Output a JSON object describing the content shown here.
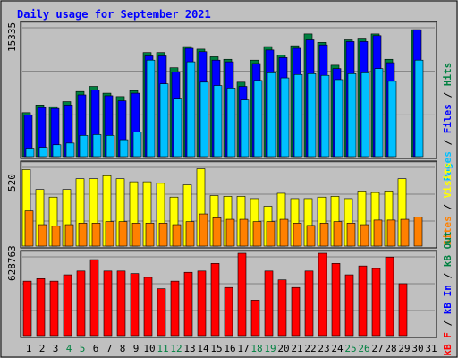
{
  "title": "Daily usage for September 2021",
  "colors": {
    "background": "#c0c0c0",
    "title": "#0000ff",
    "hits": "#008040",
    "files": "#0000ff",
    "pages": "#00c0ff",
    "visits": "#ffff00",
    "sites": "#ff8000",
    "kbin": "#0000ff",
    "kbout": "#008040",
    "kbf": "#ff0000"
  },
  "chart_data": [
    {
      "type": "bar",
      "panel": "hits-files-pages",
      "y_max_label": "15335",
      "ylim": [
        0,
        15335
      ],
      "right_label": [
        {
          "text": "Pages",
          "color": "#00c0ff"
        },
        {
          "text": " / ",
          "color": "#000000"
        },
        {
          "text": "Files",
          "color": "#0000ff"
        },
        {
          "text": " / ",
          "color": "#000000"
        },
        {
          "text": "Hits",
          "color": "#008040"
        }
      ],
      "categories": [
        "1",
        "2",
        "3",
        "4",
        "5",
        "6",
        "7",
        "8",
        "9",
        "10",
        "11",
        "12",
        "13",
        "14",
        "15",
        "16",
        "17",
        "18",
        "19",
        "20",
        "21",
        "22",
        "23",
        "24",
        "25",
        "26",
        "27",
        "28",
        "29",
        "30",
        "31"
      ],
      "series": [
        {
          "name": "Hits",
          "values": [
            5200,
            6100,
            5900,
            6500,
            7700,
            8300,
            7500,
            7100,
            7800,
            12300,
            12300,
            10500,
            13000,
            12700,
            11800,
            11500,
            8800,
            11400,
            13000,
            12000,
            13100,
            14500,
            13500,
            10800,
            13800,
            13900,
            14500,
            11500,
            null,
            null,
            null
          ]
        },
        {
          "name": "Files",
          "values": [
            4900,
            5800,
            5700,
            6100,
            7300,
            7900,
            7200,
            6600,
            7500,
            11900,
            11900,
            10000,
            12800,
            12400,
            11400,
            11200,
            8300,
            11000,
            12600,
            11700,
            12800,
            13800,
            13200,
            10400,
            13600,
            13600,
            14300,
            11100,
            null,
            null,
            null
          ]
        },
        {
          "name": "Pages",
          "values": [
            1000,
            1100,
            1400,
            1600,
            2500,
            2600,
            2500,
            2000,
            2900,
            11400,
            8600,
            6800,
            11200,
            8800,
            8400,
            8100,
            6700,
            9000,
            9900,
            9300,
            9700,
            9800,
            9600,
            9100,
            9800,
            9900,
            10400,
            8900,
            null,
            null,
            null
          ]
        }
      ],
      "day_values_30": [
        15000,
        11400
      ]
    },
    {
      "type": "bar",
      "panel": "visits-sites",
      "y_max_label": "520",
      "ylim": [
        0,
        520
      ],
      "right_label": [
        {
          "text": "Sites",
          "color": "#ff8000"
        },
        {
          "text": " / ",
          "color": "#000000"
        },
        {
          "text": "Visits",
          "color": "#ffff00"
        }
      ],
      "series": [
        {
          "name": "Visits",
          "values": [
            500,
            370,
            320,
            370,
            440,
            440,
            460,
            440,
            420,
            420,
            410,
            320,
            400,
            505,
            330,
            325,
            325,
            310,
            260,
            345,
            310,
            310,
            320,
            325,
            310,
            360,
            350,
            360,
            440,
            null,
            null
          ]
        },
        {
          "name": "Sites",
          "values": [
            230,
            140,
            130,
            140,
            150,
            150,
            160,
            160,
            150,
            150,
            150,
            140,
            160,
            210,
            185,
            175,
            175,
            160,
            160,
            175,
            150,
            135,
            150,
            160,
            150,
            140,
            170,
            170,
            175,
            190,
            null
          ]
        }
      ]
    },
    {
      "type": "bar",
      "panel": "kb",
      "y_max_label": "628763",
      "ylim": [
        0,
        628763
      ],
      "right_label": [
        {
          "text": "kB F",
          "color": "#ff0000"
        },
        {
          "text": " / ",
          "color": "#000000"
        },
        {
          "text": "kB In",
          "color": "#0000ff"
        },
        {
          "text": " / ",
          "color": "#000000"
        },
        {
          "text": "kB Out",
          "color": "#008040"
        }
      ],
      "series": [
        {
          "name": "kB F",
          "values": [
            430000,
            450000,
            430000,
            480000,
            510000,
            600000,
            510000,
            510000,
            490000,
            460000,
            370000,
            430000,
            500000,
            510000,
            570000,
            380000,
            650000,
            280000,
            510000,
            440000,
            380000,
            510000,
            650000,
            570000,
            480000,
            550000,
            530000,
            620000,
            410000,
            null,
            null
          ]
        }
      ]
    }
  ]
}
